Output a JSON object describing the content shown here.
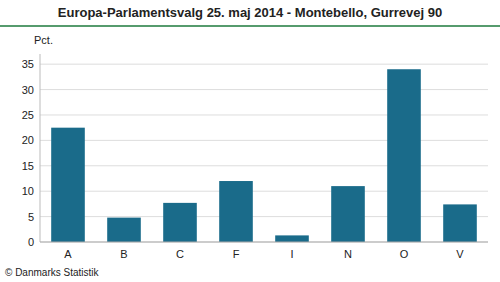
{
  "chart_data": {
    "type": "bar",
    "title": "Europa-Parlamentsvalg 25. maj 2014 - Montebello, Gurrevej 90",
    "ylabel": "Pct.",
    "annotations": [
      "© Danmarks Statistik"
    ],
    "categories": [
      "A",
      "B",
      "C",
      "F",
      "I",
      "N",
      "O",
      "V"
    ],
    "values": [
      22.5,
      4.8,
      7.7,
      12.0,
      1.3,
      11.0,
      34.0,
      7.4
    ],
    "color": "#1a6b8a",
    "ylim": [
      0,
      37
    ],
    "yticks": [
      0,
      5,
      10,
      15,
      20,
      25,
      30,
      35
    ],
    "grid": true
  }
}
